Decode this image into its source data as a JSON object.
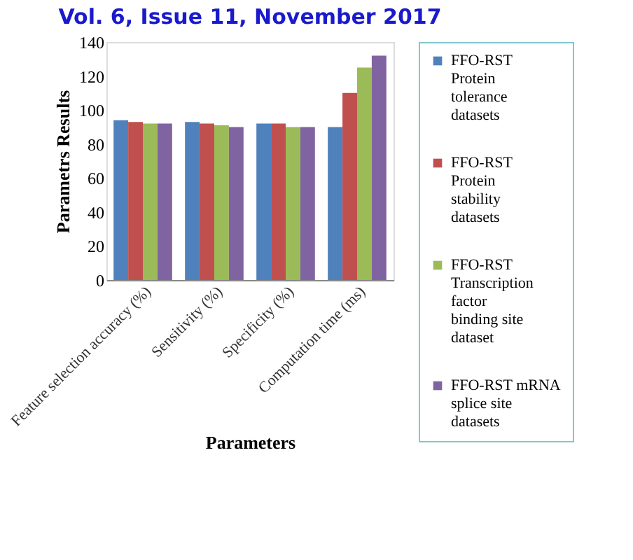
{
  "chart_data": {
    "type": "bar",
    "title": "Vol. 6, Issue 11, November 2017",
    "xlabel": "Parameters",
    "ylabel": "Parametrs Results",
    "categories": [
      "Feature selection accuracy (%)",
      "Sensitivity (%)",
      "Specificity (%)",
      "Computation time (ms)"
    ],
    "series": [
      {
        "name": "FFO-RST Protein tolerance datasets",
        "color": "#4f81bd",
        "values": [
          94,
          93,
          92,
          90
        ]
      },
      {
        "name": "FFO-RST Protein stability datasets",
        "color": "#c0504d",
        "values": [
          93,
          92,
          92,
          110
        ]
      },
      {
        "name": "FFO-RST Transcription factor binding site dataset",
        "color": "#9bbb59",
        "values": [
          92,
          91,
          90,
          125
        ]
      },
      {
        "name": "FFO-RST mRNA splice site datasets",
        "color": "#8064a2",
        "values": [
          92,
          90,
          90,
          132
        ]
      }
    ],
    "ylim": [
      0,
      140
    ],
    "yticks": [
      0,
      20,
      40,
      60,
      80,
      100,
      120,
      140
    ],
    "grid": false,
    "legend": "right"
  }
}
